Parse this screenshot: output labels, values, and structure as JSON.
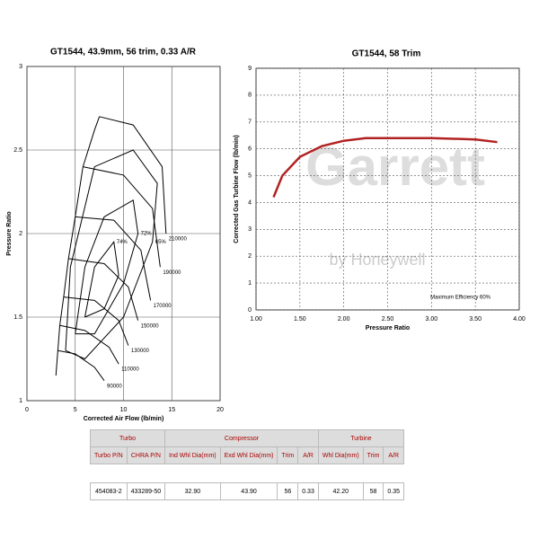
{
  "chart_data": [
    {
      "type": "line",
      "title": "GT1544, 43.9mm, 56 trim, 0.33 A/R",
      "xlabel": "Corrected Air Flow (lb/min)",
      "ylabel": "Pressure Ratio",
      "xlim": [
        0,
        20
      ],
      "xticks": [
        0,
        5,
        10,
        15,
        20
      ],
      "ylim": [
        1,
        3
      ],
      "yticks": [
        1,
        1.5,
        2,
        2.5,
        3
      ],
      "grid": true,
      "title_color": "#1a237e",
      "series": [
        {
          "color": "#000",
          "x": [
            3,
            3.2,
            3.4,
            3.8,
            4.3,
            5,
            5.8,
            7,
            7.5
          ],
          "values": [
            1.15,
            1.3,
            1.45,
            1.62,
            1.85,
            2.1,
            2.4,
            2.62,
            2.7
          ]
        },
        {
          "name": "90000",
          "color": "#000",
          "x": [
            3.2,
            5,
            7,
            8
          ],
          "values": [
            1.3,
            1.28,
            1.2,
            1.12
          ]
        },
        {
          "name": "110000",
          "color": "#000",
          "x": [
            3.4,
            6,
            8.5,
            9.5
          ],
          "values": [
            1.45,
            1.42,
            1.32,
            1.22
          ]
        },
        {
          "name": "130000",
          "color": "#000",
          "x": [
            3.8,
            7,
            9.5,
            10.5
          ],
          "values": [
            1.62,
            1.6,
            1.48,
            1.33
          ]
        },
        {
          "name": "150000",
          "color": "#000",
          "x": [
            4.3,
            8,
            10.5,
            11.5
          ],
          "values": [
            1.85,
            1.82,
            1.68,
            1.48
          ]
        },
        {
          "name": "170000",
          "color": "#000",
          "x": [
            5,
            9,
            11.8,
            12.8
          ],
          "values": [
            2.1,
            2.08,
            1.9,
            1.6
          ]
        },
        {
          "name": "190000",
          "color": "#000",
          "x": [
            5.8,
            10,
            13,
            13.8
          ],
          "values": [
            2.4,
            2.35,
            2.15,
            1.8
          ]
        },
        {
          "name": "210000",
          "color": "#000",
          "x": [
            7.5,
            11,
            14,
            14.4
          ],
          "values": [
            2.7,
            2.65,
            2.4,
            2.0
          ]
        },
        {
          "name": "65%",
          "color": "#000",
          "x": [
            4,
            6,
            10,
            13,
            13.5,
            11,
            7,
            4.5,
            4
          ],
          "values": [
            1.3,
            1.25,
            1.5,
            1.95,
            2.3,
            2.5,
            2.4,
            1.8,
            1.3
          ]
        },
        {
          "name": "72%",
          "color": "#000",
          "x": [
            5,
            7,
            10,
            11.5,
            11,
            8,
            6,
            5
          ],
          "values": [
            1.4,
            1.4,
            1.7,
            2.0,
            2.2,
            2.1,
            1.8,
            1.4
          ]
        },
        {
          "name": "74%",
          "color": "#000",
          "x": [
            6,
            8,
            9.5,
            9,
            7,
            6
          ],
          "values": [
            1.5,
            1.55,
            1.75,
            1.95,
            1.8,
            1.5
          ]
        }
      ]
    },
    {
      "type": "line",
      "title": "GT1544, 58 Trim",
      "xlabel": "Pressure Ratio",
      "ylabel": "Corrected Gas Turbine Flow (lb/min)",
      "xlim": [
        1,
        4
      ],
      "xticks": [
        {
          "value": 1,
          "label": "1.00"
        },
        {
          "value": 1.5,
          "label": "1.50"
        },
        {
          "value": 2,
          "label": "2.00"
        },
        {
          "value": 2.5,
          "label": "2.50"
        },
        {
          "value": 3,
          "label": "3.00"
        },
        {
          "value": 3.5,
          "label": "3.50"
        },
        {
          "value": 4,
          "label": "4.00"
        }
      ],
      "ylim": [
        0,
        9
      ],
      "yticks": [
        0,
        1,
        2,
        3,
        4,
        5,
        6,
        7,
        8,
        9
      ],
      "grid": true,
      "title_color": "#b01c1c",
      "annotation": "Maximum Efficiency 60%",
      "watermark": "Garrett",
      "watermark_sub": "by Honeywell",
      "series": [
        {
          "color": "#b22222",
          "x": [
            1.2,
            1.3,
            1.5,
            1.75,
            2.0,
            2.25,
            2.5,
            3.0,
            3.5,
            3.75
          ],
          "values": [
            4.2,
            5.0,
            5.7,
            6.1,
            6.3,
            6.4,
            6.4,
            6.4,
            6.35,
            6.25
          ]
        }
      ]
    }
  ],
  "table": {
    "groups": [
      "Turbo",
      "Compressor",
      "Turbine"
    ],
    "headers": [
      "Turbo P/N",
      "CHRA P/N",
      "Ind Whl Dia(mm)",
      "Exd Whl Dia(mm)",
      "Trim",
      "A/R",
      "Whl Dia(mm)",
      "Trim",
      "A/R"
    ],
    "row": [
      "454083-2",
      "433289-50",
      "32.90",
      "43.90",
      "56",
      "0.33",
      "42.20",
      "58",
      "0.35"
    ]
  }
}
